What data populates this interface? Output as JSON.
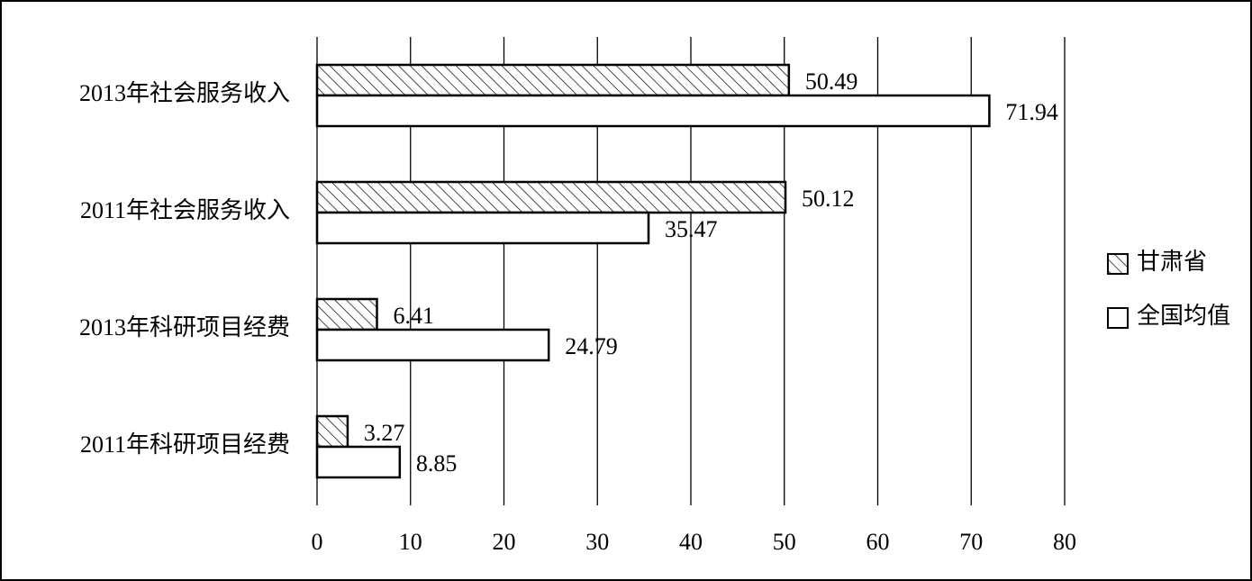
{
  "chart_data": {
    "type": "hbar",
    "categories": [
      "2013年社会服务收入",
      "2011年社会服务收入",
      "2013年科研项目经费",
      "2011年科研项目经费"
    ],
    "series": [
      {
        "name": "甘肃省",
        "color": "#000000",
        "pattern": "hatch",
        "values": [
          50.49,
          50.12,
          6.41,
          3.27
        ]
      },
      {
        "name": "全国均值",
        "color": "#000000",
        "pattern": "none",
        "values": [
          71.94,
          35.47,
          24.79,
          8.85
        ]
      }
    ],
    "xlim": [
      0,
      80
    ],
    "xticks": [
      0,
      10,
      20,
      30,
      40,
      50,
      60,
      70,
      80
    ],
    "grid": true,
    "legend": "right"
  }
}
